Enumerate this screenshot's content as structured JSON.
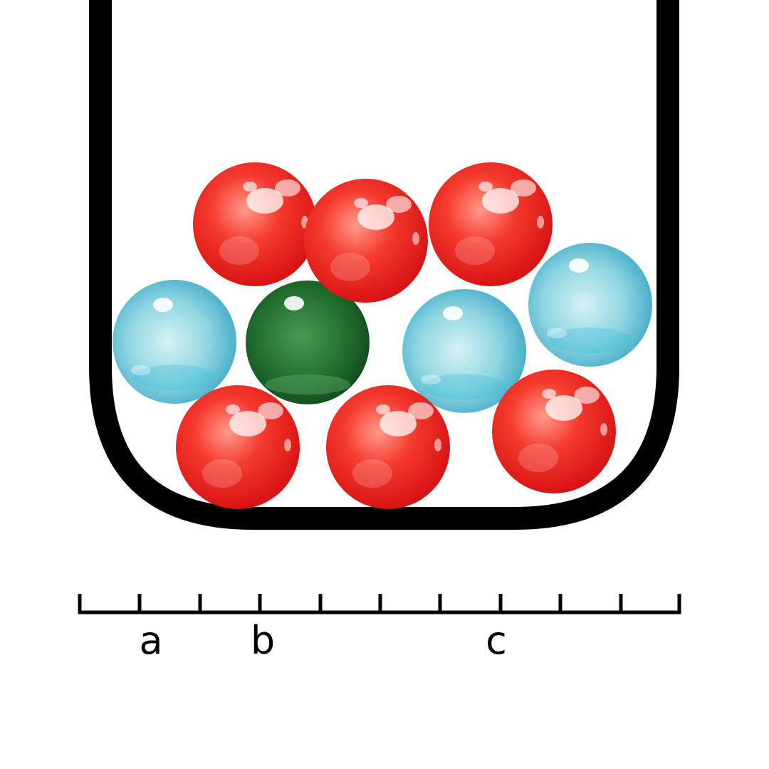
{
  "container": {
    "outline_color": "#000000"
  },
  "marbles": [
    {
      "color": "red"
    },
    {
      "color": "red"
    },
    {
      "color": "red"
    },
    {
      "color": "blue"
    },
    {
      "color": "green"
    },
    {
      "color": "blue"
    },
    {
      "color": "blue"
    },
    {
      "color": "red"
    },
    {
      "color": "red"
    },
    {
      "color": "red"
    }
  ],
  "marble_colors": {
    "red": "#ee2222",
    "blue": "#5bc0d8",
    "green": "#1e6b2c"
  },
  "scale": {
    "labels": [
      "a",
      "b",
      "c"
    ]
  }
}
